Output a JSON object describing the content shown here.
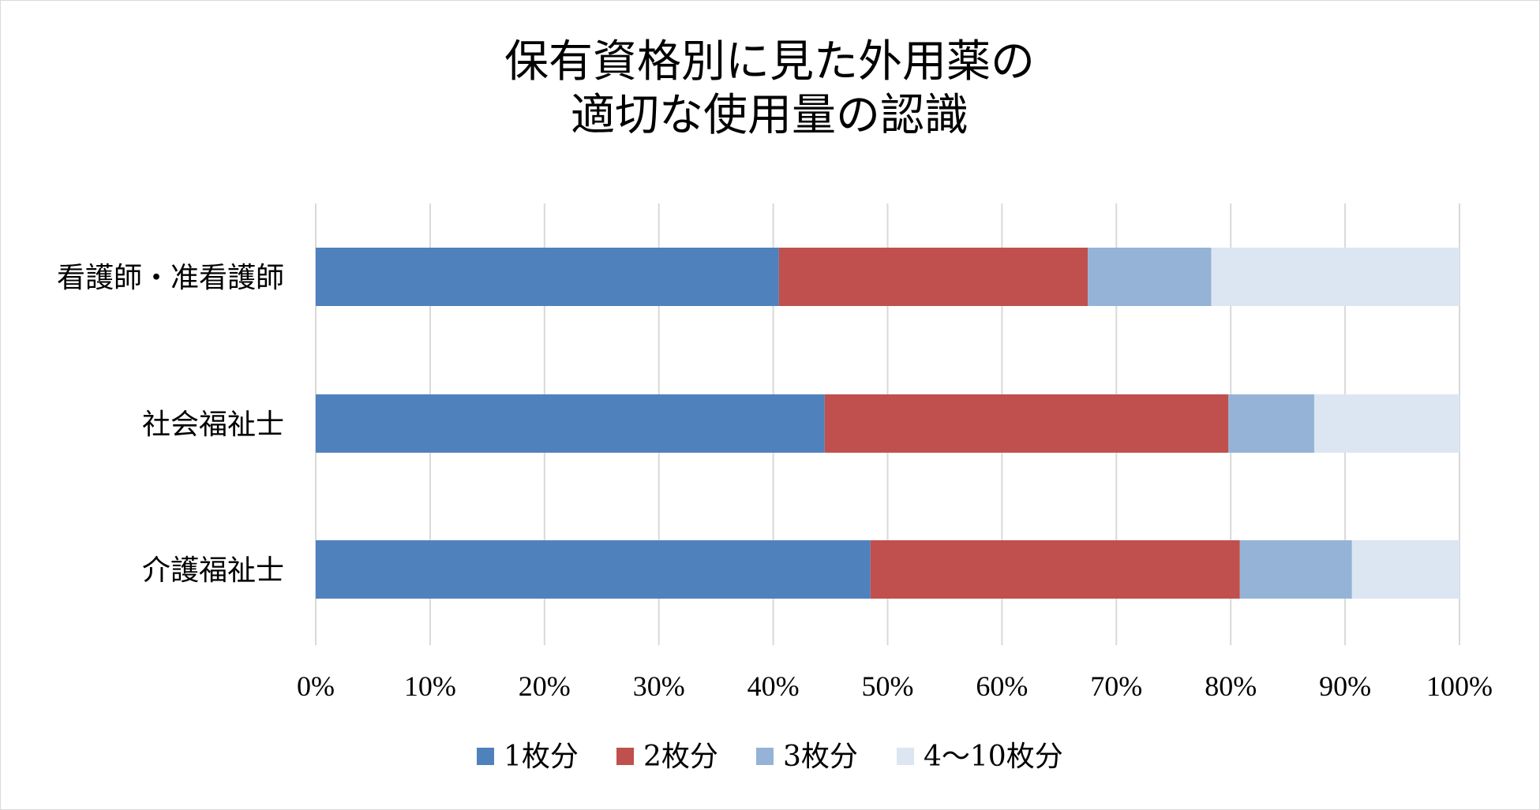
{
  "chart_data": {
    "type": "bar",
    "orientation": "horizontal",
    "stacked": "percent",
    "title_lines": [
      "保有資格別に見た外用薬の",
      "適切な使用量の認識"
    ],
    "categories": [
      "看護師・准看護師",
      "社会福祉士",
      "介護福祉士"
    ],
    "series": [
      {
        "name": "1枚分",
        "color": "#4f81bd",
        "values": [
          40.5,
          44.5,
          48.5
        ]
      },
      {
        "name": "2枚分",
        "color": "#c0504d",
        "values": [
          27.0,
          35.3,
          32.3
        ]
      },
      {
        "name": "3枚分",
        "color": "#95b3d7",
        "values": [
          10.8,
          7.5,
          9.8
        ]
      },
      {
        "name": "4～10枚分",
        "color": "#dce6f2",
        "values": [
          21.7,
          12.7,
          9.4
        ]
      }
    ],
    "xlim": [
      0,
      100
    ],
    "xticks": [
      "0%",
      "10%",
      "20%",
      "30%",
      "40%",
      "50%",
      "60%",
      "70%",
      "80%",
      "90%",
      "100%"
    ],
    "grid": true,
    "legend": "bottom"
  }
}
